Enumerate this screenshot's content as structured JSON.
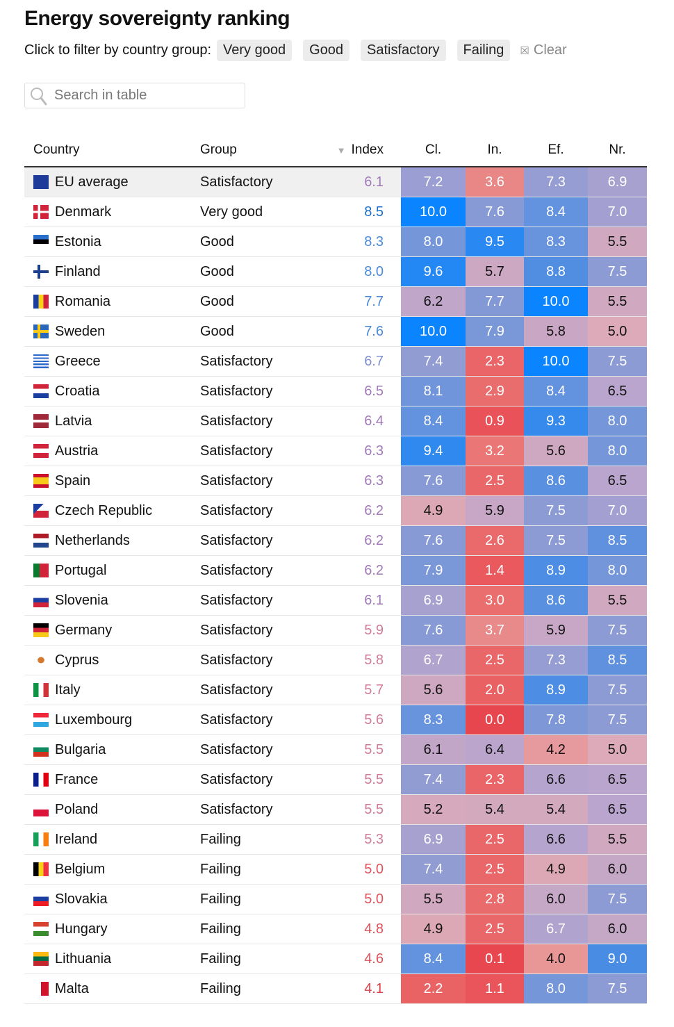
{
  "title": "Energy sovereignty ranking",
  "filter": {
    "label": "Click to filter by country group:",
    "chips": [
      "Very good",
      "Good",
      "Satisfactory",
      "Failing"
    ],
    "clear": "Clear"
  },
  "search": {
    "placeholder": "Search in table"
  },
  "columns": [
    "Country",
    "Group",
    "Index",
    "Cl.",
    "In.",
    "Ef.",
    "Nr."
  ],
  "rows": [
    {
      "country": "EU average",
      "flag": "eu",
      "group": "Satisfactory",
      "index": "6.1",
      "v": [
        "7.2",
        "3.6",
        "7.3",
        "6.9"
      ]
    },
    {
      "country": "Denmark",
      "flag": "dk",
      "group": "Very good",
      "index": "8.5",
      "v": [
        "10.0",
        "7.6",
        "8.4",
        "7.0"
      ]
    },
    {
      "country": "Estonia",
      "flag": "ee",
      "group": "Good",
      "index": "8.3",
      "v": [
        "8.0",
        "9.5",
        "8.3",
        "5.5"
      ]
    },
    {
      "country": "Finland",
      "flag": "fi",
      "group": "Good",
      "index": "8.0",
      "v": [
        "9.6",
        "5.7",
        "8.8",
        "7.5"
      ]
    },
    {
      "country": "Romania",
      "flag": "ro",
      "group": "Good",
      "index": "7.7",
      "v": [
        "6.2",
        "7.7",
        "10.0",
        "5.5"
      ]
    },
    {
      "country": "Sweden",
      "flag": "se",
      "group": "Good",
      "index": "7.6",
      "v": [
        "10.0",
        "7.9",
        "5.8",
        "5.0"
      ]
    },
    {
      "country": "Greece",
      "flag": "gr",
      "group": "Satisfactory",
      "index": "6.7",
      "v": [
        "7.4",
        "2.3",
        "10.0",
        "7.5"
      ]
    },
    {
      "country": "Croatia",
      "flag": "hr",
      "group": "Satisfactory",
      "index": "6.5",
      "v": [
        "8.1",
        "2.9",
        "8.4",
        "6.5"
      ]
    },
    {
      "country": "Latvia",
      "flag": "lv",
      "group": "Satisfactory",
      "index": "6.4",
      "v": [
        "8.4",
        "0.9",
        "9.3",
        "8.0"
      ]
    },
    {
      "country": "Austria",
      "flag": "at",
      "group": "Satisfactory",
      "index": "6.3",
      "v": [
        "9.4",
        "3.2",
        "5.6",
        "8.0"
      ]
    },
    {
      "country": "Spain",
      "flag": "es",
      "group": "Satisfactory",
      "index": "6.3",
      "v": [
        "7.6",
        "2.5",
        "8.6",
        "6.5"
      ]
    },
    {
      "country": "Czech Republic",
      "flag": "cz",
      "group": "Satisfactory",
      "index": "6.2",
      "v": [
        "4.9",
        "5.9",
        "7.5",
        "7.0"
      ]
    },
    {
      "country": "Netherlands",
      "flag": "nl",
      "group": "Satisfactory",
      "index": "6.2",
      "v": [
        "7.6",
        "2.6",
        "7.5",
        "8.5"
      ]
    },
    {
      "country": "Portugal",
      "flag": "pt",
      "group": "Satisfactory",
      "index": "6.2",
      "v": [
        "7.9",
        "1.4",
        "8.9",
        "8.0"
      ]
    },
    {
      "country": "Slovenia",
      "flag": "si",
      "group": "Satisfactory",
      "index": "6.1",
      "v": [
        "6.9",
        "3.0",
        "8.6",
        "5.5"
      ]
    },
    {
      "country": "Germany",
      "flag": "de",
      "group": "Satisfactory",
      "index": "5.9",
      "v": [
        "7.6",
        "3.7",
        "5.9",
        "7.5"
      ]
    },
    {
      "country": "Cyprus",
      "flag": "cy",
      "group": "Satisfactory",
      "index": "5.8",
      "v": [
        "6.7",
        "2.5",
        "7.3",
        "8.5"
      ]
    },
    {
      "country": "Italy",
      "flag": "it",
      "group": "Satisfactory",
      "index": "5.7",
      "v": [
        "5.6",
        "2.0",
        "8.9",
        "7.5"
      ]
    },
    {
      "country": "Luxembourg",
      "flag": "lu",
      "group": "Satisfactory",
      "index": "5.6",
      "v": [
        "8.3",
        "0.0",
        "7.8",
        "7.5"
      ]
    },
    {
      "country": "Bulgaria",
      "flag": "bg",
      "group": "Satisfactory",
      "index": "5.5",
      "v": [
        "6.1",
        "6.4",
        "4.2",
        "5.0"
      ]
    },
    {
      "country": "France",
      "flag": "fr",
      "group": "Satisfactory",
      "index": "5.5",
      "v": [
        "7.4",
        "2.3",
        "6.6",
        "6.5"
      ]
    },
    {
      "country": "Poland",
      "flag": "pl",
      "group": "Satisfactory",
      "index": "5.5",
      "v": [
        "5.2",
        "5.4",
        "5.4",
        "6.5"
      ]
    },
    {
      "country": "Ireland",
      "flag": "ie",
      "group": "Failing",
      "index": "5.3",
      "v": [
        "6.9",
        "2.5",
        "6.6",
        "5.5"
      ]
    },
    {
      "country": "Belgium",
      "flag": "be",
      "group": "Failing",
      "index": "5.0",
      "v": [
        "7.4",
        "2.5",
        "4.9",
        "6.0"
      ]
    },
    {
      "country": "Slovakia",
      "flag": "sk",
      "group": "Failing",
      "index": "5.0",
      "v": [
        "5.5",
        "2.8",
        "6.0",
        "7.5"
      ]
    },
    {
      "country": "Hungary",
      "flag": "hu",
      "group": "Failing",
      "index": "4.8",
      "v": [
        "4.9",
        "2.5",
        "6.7",
        "6.0"
      ]
    },
    {
      "country": "Lithuania",
      "flag": "lt",
      "group": "Failing",
      "index": "4.6",
      "v": [
        "8.4",
        "0.1",
        "4.0",
        "9.0"
      ]
    },
    {
      "country": "Malta",
      "flag": "mt",
      "group": "Failing",
      "index": "4.1",
      "v": [
        "2.2",
        "1.1",
        "8.0",
        "7.5"
      ]
    }
  ]
}
